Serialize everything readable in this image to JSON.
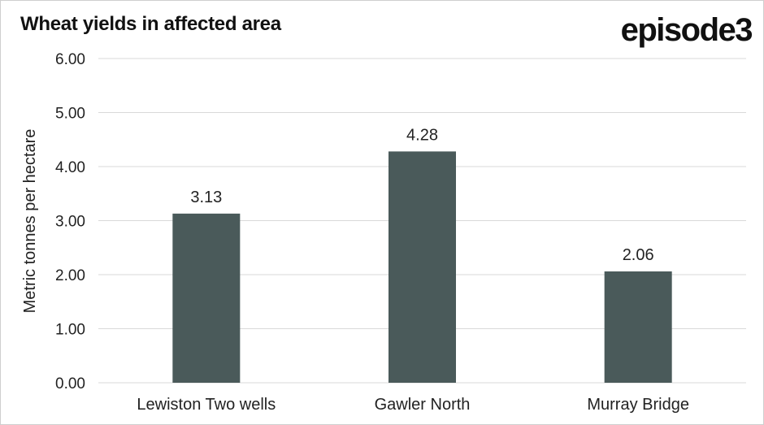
{
  "header": {
    "title": "Wheat yields in affected area",
    "brand": "episode3"
  },
  "colors": {
    "bar": "#4a5a5a",
    "grid": "#d9d9d9",
    "text": "#222222"
  },
  "chart_data": {
    "type": "bar",
    "title": "Wheat yields in affected area",
    "ylabel": "Metric tonnes per hectare",
    "xlabel": "",
    "categories": [
      "Lewiston Two wells",
      "Gawler North",
      "Murray Bridge"
    ],
    "values": [
      3.13,
      4.28,
      2.06
    ],
    "data_labels": [
      "3.13",
      "4.28",
      "2.06"
    ],
    "ylim": [
      0,
      6
    ],
    "yticks": [
      "0.00",
      "1.00",
      "2.00",
      "3.00",
      "4.00",
      "5.00",
      "6.00"
    ],
    "grid": true,
    "legend": "none"
  }
}
